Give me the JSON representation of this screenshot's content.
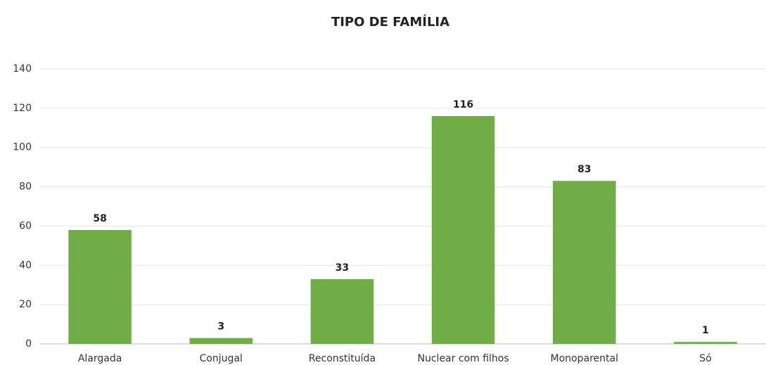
{
  "chart_data": {
    "type": "bar",
    "title": "TIPO DE FAMÍLIA",
    "categories": [
      "Alargada",
      "Conjugal",
      "Reconstituída",
      "Nuclear com filhos",
      "Monoparental",
      "Só"
    ],
    "values": [
      58,
      3,
      33,
      116,
      83,
      1
    ],
    "color": "#70ad47",
    "ylim": [
      0,
      140
    ],
    "yticks": [
      0,
      20,
      40,
      60,
      80,
      100,
      120,
      140
    ],
    "grid": true,
    "data_labels": true
  }
}
